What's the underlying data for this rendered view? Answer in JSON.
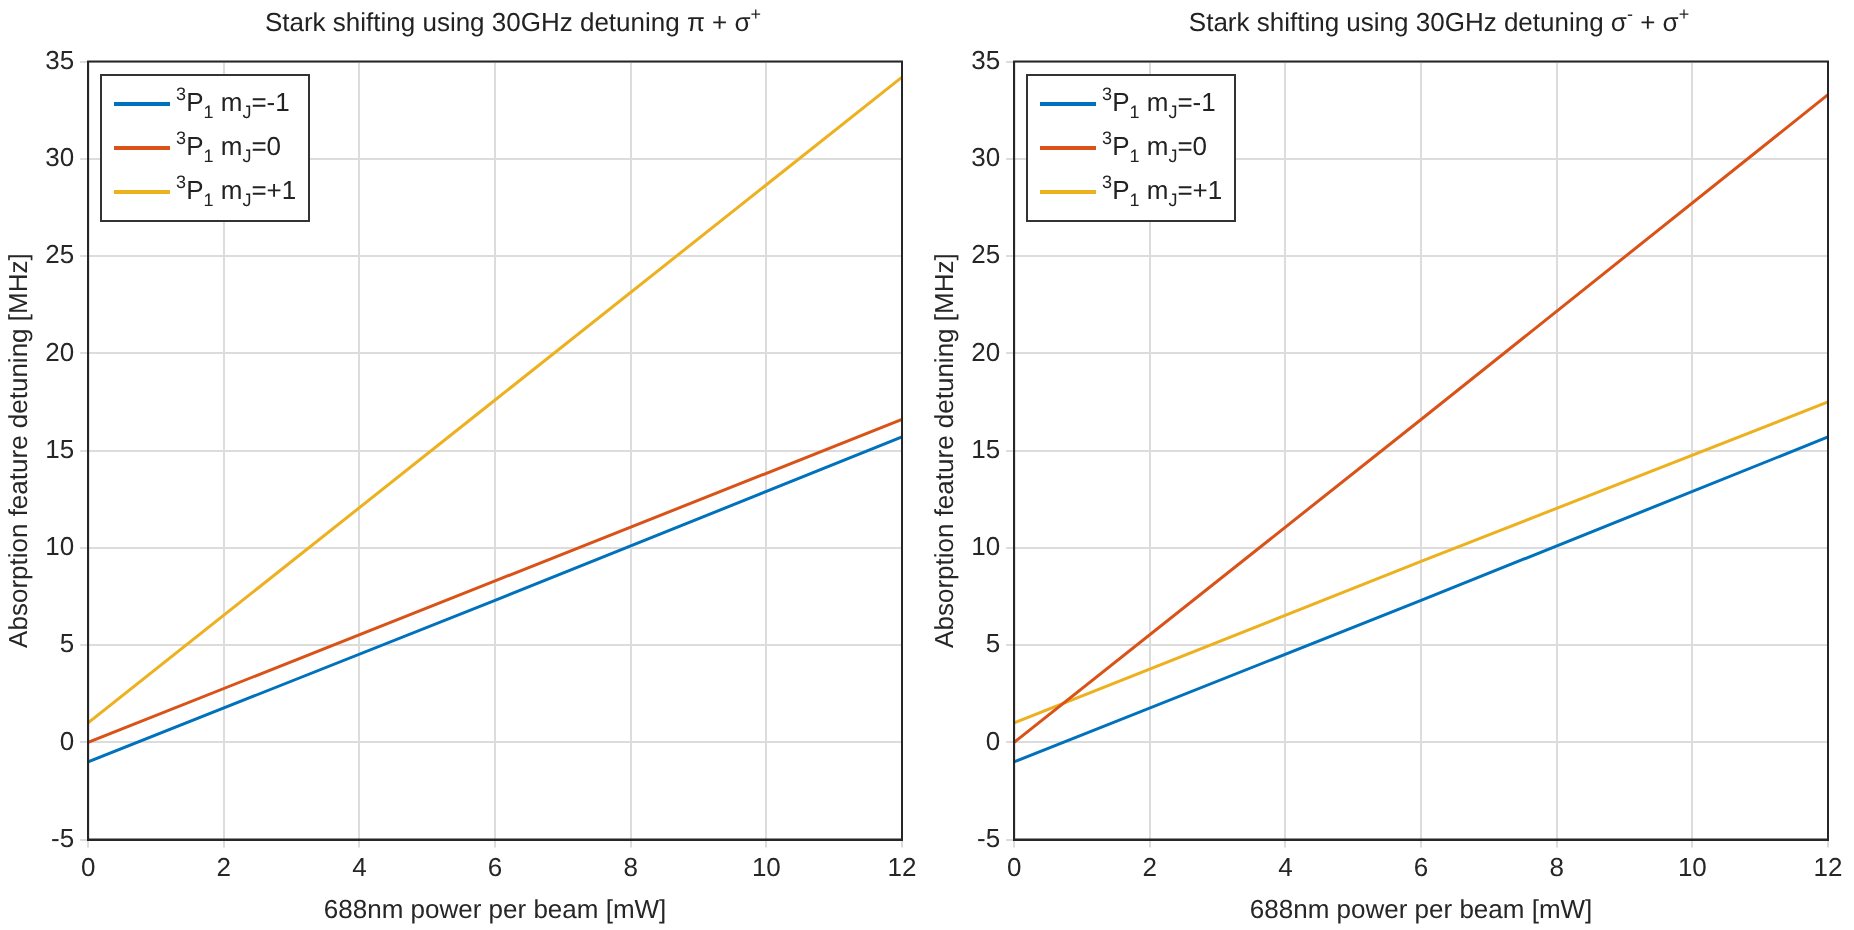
{
  "chart_data": [
    {
      "type": "line",
      "title": "Stark shifting using 30GHz detuning π + σ$^{+}$",
      "xlabel": "688nm power per beam [mW]",
      "ylabel": "Absorption feature detuning [MHz]",
      "x": [
        0,
        6,
        12
      ],
      "series": [
        {
          "name": "$^{3}$P$_{1}$ m$_{J}$=-1",
          "color": "#0072bd",
          "values": [
            -1,
            7.3,
            15.7
          ]
        },
        {
          "name": "$^{3}$P$_{1}$ m$_{J}$=0",
          "color": "#d95319",
          "values": [
            0,
            8.3,
            16.6
          ]
        },
        {
          "name": "$^{3}$P$_{1}$ m$_{J}$=+1",
          "color": "#edb120",
          "values": [
            1,
            17.6,
            34.2
          ]
        }
      ],
      "xlim": [
        0,
        12
      ],
      "xticks": [
        0,
        2,
        4,
        6,
        8,
        10,
        12
      ],
      "ylim": [
        -5,
        35
      ],
      "yticks": [
        -5,
        0,
        5,
        10,
        15,
        20,
        25,
        30,
        35
      ],
      "grid": true,
      "legend": "top left",
      "marker": "none",
      "line_style": "solid"
    },
    {
      "type": "line",
      "title": "Stark shifting using 30GHz detuning σ$^{-}$ + σ$^{+}$",
      "xlabel": "688nm power per beam [mW]",
      "ylabel": "Absorption feature detuning [MHz]",
      "x": [
        0,
        6,
        12
      ],
      "series": [
        {
          "name": "$^{3}$P$_{1}$ m$_{J}$=-1",
          "color": "#0072bd",
          "values": [
            -1,
            7.3,
            15.7
          ]
        },
        {
          "name": "$^{3}$P$_{1}$ m$_{J}$=0",
          "color": "#d95319",
          "values": [
            0,
            16.6,
            33.3
          ]
        },
        {
          "name": "$^{3}$P$_{1}$ m$_{J}$=+1",
          "color": "#edb120",
          "values": [
            1,
            9.3,
            17.5
          ]
        }
      ],
      "xlim": [
        0,
        12
      ],
      "xticks": [
        0,
        2,
        4,
        6,
        8,
        10,
        12
      ],
      "ylim": [
        -5,
        35
      ],
      "yticks": [
        -5,
        0,
        5,
        10,
        15,
        20,
        25,
        30,
        35
      ],
      "grid": true,
      "legend": "top left",
      "marker": "none",
      "line_style": "solid"
    }
  ]
}
